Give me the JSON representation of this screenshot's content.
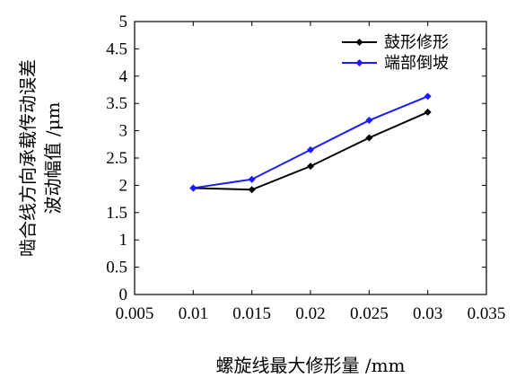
{
  "chart_data": {
    "type": "line",
    "x": [
      0.01,
      0.015,
      0.02,
      0.025,
      0.03
    ],
    "series": [
      {
        "name": "鼓形修形",
        "values": [
          1.95,
          1.92,
          2.35,
          2.87,
          3.34
        ],
        "color": "#000000"
      },
      {
        "name": "端部倒坡",
        "values": [
          1.95,
          2.11,
          2.65,
          3.19,
          3.63
        ],
        "color": "#1a1aff"
      }
    ],
    "xlabel": "螺旋线最大修形量 /mm",
    "ylabel_lines": [
      "啮合线方向承载传动误差",
      "波动幅值 /μm"
    ],
    "xlim": [
      0.005,
      0.035
    ],
    "ylim": [
      0,
      5
    ],
    "xticks": [
      "0.005",
      "0.01",
      "0.015",
      "0.02",
      "0.025",
      "0.03",
      "0.035"
    ],
    "yticks": [
      "0",
      "0.5",
      "1",
      "1.5",
      "2",
      "2.5",
      "3",
      "3.5",
      "4",
      "4.5",
      "5"
    ],
    "grid": false,
    "legend_position": "top-right",
    "marker": "diamond"
  }
}
